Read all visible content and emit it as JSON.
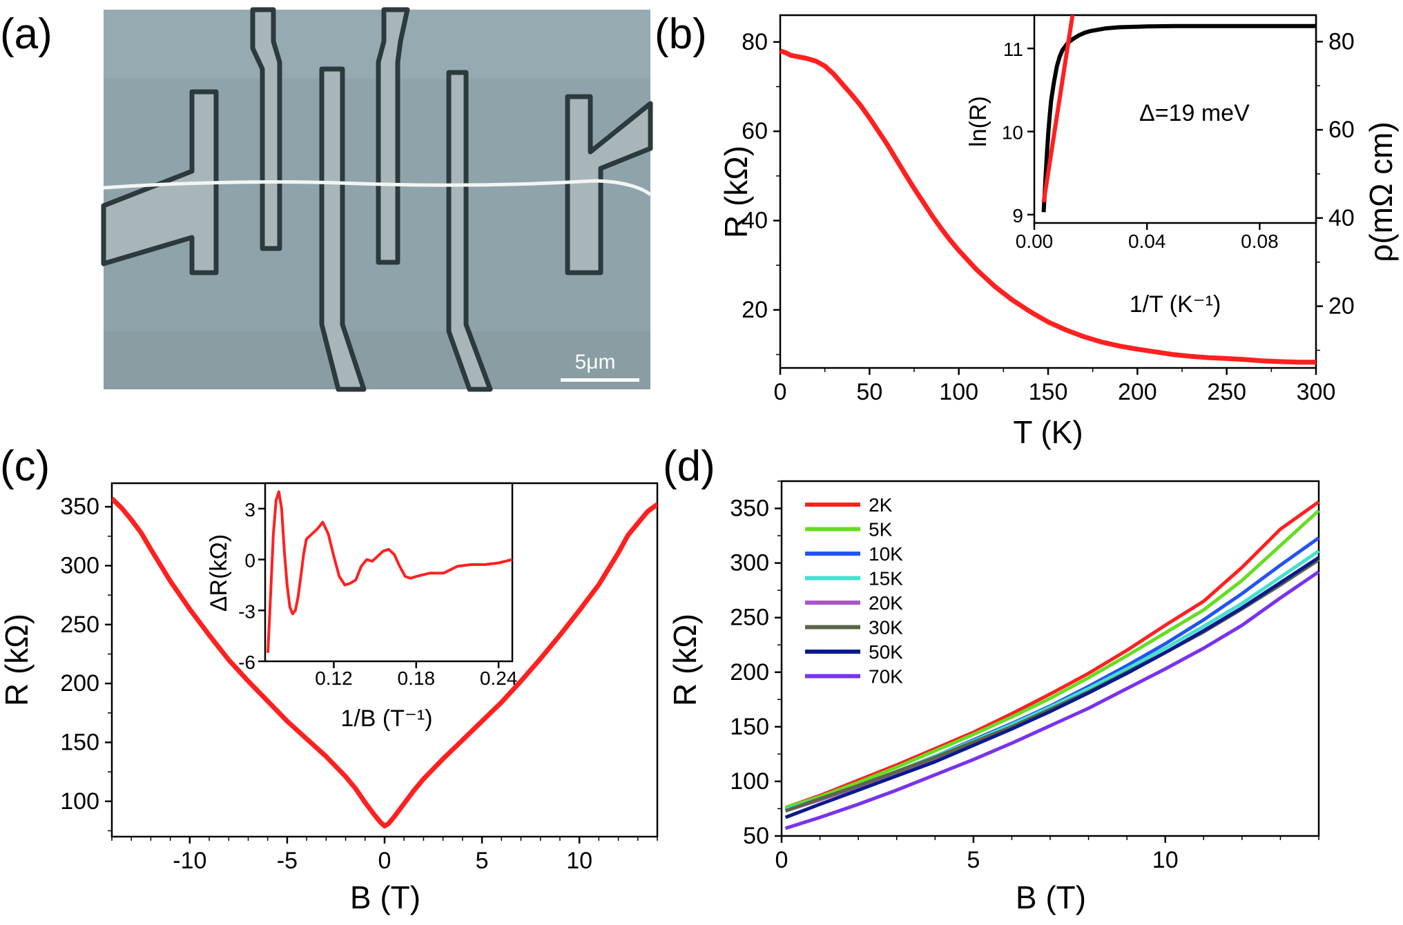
{
  "panels": {
    "a": {
      "label": "(a)",
      "scale_bar": "5μm"
    },
    "b": {
      "label": "(b)"
    },
    "c": {
      "label": "(c)"
    },
    "d": {
      "label": "(d)"
    }
  },
  "chart_data": [
    {
      "id": "b",
      "type": "line",
      "xlabel": "T (K)",
      "ylabel": "R (kΩ)",
      "y2label": "ρ(mΩ cm)",
      "xlim": [
        0,
        300
      ],
      "ylim": [
        7,
        86
      ],
      "y2lim": [
        6,
        86
      ],
      "xticks": [
        0,
        50,
        100,
        150,
        200,
        250,
        300
      ],
      "yticks": [
        20,
        40,
        60,
        80
      ],
      "y2ticks": [
        20,
        40,
        60,
        80
      ],
      "color": "#ff2020",
      "x": [
        0,
        3,
        6,
        10,
        15,
        20,
        25,
        30,
        35,
        40,
        45,
        50,
        55,
        60,
        65,
        70,
        75,
        80,
        85,
        90,
        95,
        100,
        110,
        120,
        130,
        140,
        150,
        160,
        170,
        180,
        190,
        200,
        210,
        220,
        230,
        240,
        250,
        260,
        270,
        280,
        290,
        300
      ],
      "values": [
        78.0,
        77.6,
        77.0,
        76.7,
        76.3,
        75.7,
        74.6,
        72.8,
        70.5,
        68.2,
        65.8,
        63.0,
        60.0,
        57.0,
        53.7,
        50.4,
        47.2,
        44.2,
        41.1,
        38.3,
        35.7,
        33.3,
        29.0,
        25.3,
        22.2,
        19.6,
        17.3,
        15.5,
        14.0,
        12.8,
        11.9,
        11.2,
        10.6,
        10.0,
        9.6,
        9.3,
        9.1,
        8.9,
        8.6,
        8.4,
        8.3,
        8.3
      ],
      "inset": {
        "type": "line",
        "xlabel": "1/T (K⁻¹)",
        "ylabel": "ln(R)",
        "xlim": [
          0,
          0.1
        ],
        "ylim": [
          8.9,
          11.4
        ],
        "xticks": [
          "0.00",
          "0.04",
          "0.08"
        ],
        "yticks": [
          "9",
          "10",
          "11"
        ],
        "annotation": "Δ=19 meV",
        "series": [
          {
            "color": "#000000",
            "x": [
              0.0033,
              0.0036,
              0.004,
              0.0045,
              0.005,
              0.0055,
              0.006,
              0.007,
              0.008,
              0.009,
              0.01,
              0.012,
              0.014,
              0.016,
              0.018,
              0.02,
              0.025,
              0.03,
              0.035,
              0.04,
              0.05,
              0.06,
              0.07,
              0.08,
              0.09,
              0.1
            ],
            "values": [
              9.03,
              9.2,
              9.45,
              9.75,
              10.0,
              10.2,
              10.38,
              10.6,
              10.78,
              10.9,
              10.98,
              11.07,
              11.12,
              11.16,
              11.19,
              11.21,
              11.24,
              11.255,
              11.26,
              11.265,
              11.27,
              11.27,
              11.27,
              11.27,
              11.27,
              11.27
            ]
          },
          {
            "color": "#ff2020",
            "x": [
              0.0033,
              0.0138
            ],
            "values": [
              9.15,
              11.45
            ]
          }
        ]
      }
    },
    {
      "id": "c",
      "type": "line",
      "xlabel": "B (T)",
      "ylabel": "R (kΩ)",
      "xlim": [
        -14,
        14
      ],
      "ylim": [
        70,
        370
      ],
      "xticks": [
        -10,
        -5,
        0,
        5,
        10
      ],
      "yticks": [
        100,
        150,
        200,
        250,
        300,
        350
      ],
      "color": "#ff2020",
      "x": [
        -14,
        -13.5,
        -13,
        -12.5,
        -12,
        -11,
        -10,
        -9,
        -8,
        -7,
        -6,
        -5,
        -4,
        -3,
        -2,
        -1.5,
        -1,
        -0.5,
        -0.2,
        0,
        0.2,
        0.5,
        1,
        1.5,
        2,
        3,
        4,
        5,
        6,
        7,
        8,
        9,
        10,
        11,
        12,
        12.5,
        13,
        13.5,
        14
      ],
      "values": [
        357,
        349,
        339,
        328,
        314,
        287,
        263,
        241,
        220,
        202,
        185,
        168,
        153,
        138,
        121,
        111,
        99,
        88,
        82,
        79,
        81,
        87,
        98,
        109,
        119,
        136,
        152,
        168,
        184,
        202,
        221,
        241,
        262,
        284,
        311,
        326,
        336,
        346,
        352
      ],
      "inset": {
        "type": "line",
        "xlabel": "1/B (T⁻¹)",
        "ylabel": "ΔR(kΩ)",
        "xlim": [
          0.07,
          0.25
        ],
        "ylim": [
          -6,
          4.5
        ],
        "xticks": [
          "0.12",
          "0.18",
          "0.24"
        ],
        "yticks": [
          "3",
          "0",
          "-3",
          "-6"
        ],
        "color": "#ff2020",
        "x": [
          0.072,
          0.074,
          0.076,
          0.078,
          0.08,
          0.082,
          0.084,
          0.086,
          0.088,
          0.09,
          0.092,
          0.094,
          0.096,
          0.098,
          0.1,
          0.104,
          0.108,
          0.112,
          0.116,
          0.12,
          0.124,
          0.128,
          0.132,
          0.136,
          0.14,
          0.144,
          0.148,
          0.152,
          0.156,
          0.16,
          0.164,
          0.168,
          0.172,
          0.176,
          0.18,
          0.19,
          0.2,
          0.21,
          0.22,
          0.23,
          0.24,
          0.25
        ],
        "values": [
          -5.5,
          -2.0,
          1.5,
          3.5,
          4.0,
          3.0,
          0.5,
          -1.5,
          -2.8,
          -3.2,
          -3.0,
          -2.2,
          -1.0,
          0.3,
          1.2,
          1.5,
          1.8,
          2.2,
          1.5,
          0.2,
          -1.0,
          -1.5,
          -1.4,
          -1.2,
          -0.4,
          0.0,
          -0.1,
          0.2,
          0.5,
          0.6,
          0.3,
          -0.4,
          -1.0,
          -1.1,
          -1.0,
          -0.8,
          -0.8,
          -0.4,
          -0.3,
          -0.3,
          -0.2,
          0.0
        ]
      }
    },
    {
      "id": "d",
      "type": "line",
      "xlabel": "B (T)",
      "ylabel": "R (kΩ)",
      "xlim": [
        0,
        14
      ],
      "ylim": [
        50,
        375
      ],
      "xticks": [
        0,
        5,
        10
      ],
      "yticks": [
        50,
        100,
        150,
        200,
        250,
        300,
        350
      ],
      "legend": "top-left",
      "x": [
        0,
        1,
        2,
        3,
        4,
        5,
        6,
        7,
        8,
        9,
        10,
        11,
        12,
        13,
        14
      ],
      "series": [
        {
          "name": "2K",
          "color": "#ff2020",
          "values": [
            76,
            87,
            101,
            115,
            130,
            145,
            162,
            180,
            199,
            220,
            243,
            265,
            296,
            331,
            356
          ]
        },
        {
          "name": "5K",
          "color": "#66dd22",
          "values": [
            76,
            86,
            99,
            113,
            128,
            143,
            159,
            176,
            195,
            215,
            236,
            257,
            284,
            316,
            348
          ]
        },
        {
          "name": "10K",
          "color": "#2255ee",
          "values": [
            74,
            84,
            96,
            109,
            123,
            138,
            153,
            169,
            187,
            206,
            226,
            248,
            272,
            298,
            323
          ]
        },
        {
          "name": "15K",
          "color": "#44e0d0",
          "values": [
            74,
            84,
            96,
            109,
            123,
            137,
            152,
            168,
            185,
            203,
            222,
            242,
            263,
            287,
            311
          ]
        },
        {
          "name": "20K",
          "color": "#aa55cc",
          "values": [
            73,
            83,
            95,
            108,
            121,
            135,
            150,
            165,
            182,
            199,
            218,
            237,
            258,
            280,
            303
          ]
        },
        {
          "name": "30K",
          "color": "#5a6648",
          "values": [
            73,
            84,
            96,
            109,
            122,
            136,
            150,
            166,
            182,
            200,
            218,
            237,
            258,
            280,
            303
          ]
        },
        {
          "name": "50K",
          "color": "#0a1a8a",
          "values": [
            67,
            79,
            92,
            105,
            118,
            133,
            148,
            164,
            181,
            199,
            218,
            238,
            259,
            282,
            305
          ]
        },
        {
          "name": "70K",
          "color": "#7733ee",
          "values": [
            57,
            67,
            79,
            92,
            106,
            120,
            135,
            151,
            167,
            185,
            203,
            222,
            243,
            268,
            292
          ]
        }
      ]
    }
  ]
}
